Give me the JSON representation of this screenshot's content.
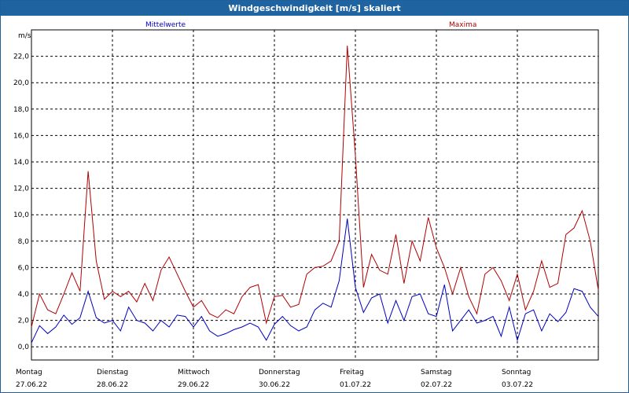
{
  "chart_data": {
    "type": "line",
    "title": "Windgeschwindigkeit [m/s] skaliert",
    "ylabel": "m/s",
    "ylim": [
      -1,
      24
    ],
    "yticks": [
      "0,0",
      "2,0",
      "4,0",
      "6,0",
      "8,0",
      "10,0",
      "12,0",
      "14,0",
      "16,0",
      "18,0",
      "20,0",
      "22,0"
    ],
    "days": [
      {
        "name": "Montag",
        "date": "27.06.22"
      },
      {
        "name": "Dienstag",
        "date": "28.06.22"
      },
      {
        "name": "Mittwoch",
        "date": "29.06.22"
      },
      {
        "name": "Donnerstag",
        "date": "30.06.22"
      },
      {
        "name": "Freitag",
        "date": "01.07.22"
      },
      {
        "name": "Samstag",
        "date": "02.07.22"
      },
      {
        "name": "Sonntag",
        "date": "03.07.22"
      }
    ],
    "xlim": [
      0,
      7
    ],
    "series": [
      {
        "name": "Mittelwerte",
        "color": "#0000c0",
        "x": [
          0,
          0.1,
          0.2,
          0.3,
          0.4,
          0.5,
          0.6,
          0.7,
          0.8,
          0.9,
          1.0,
          1.1,
          1.2,
          1.3,
          1.4,
          1.5,
          1.6,
          1.7,
          1.8,
          1.9,
          2.0,
          2.1,
          2.2,
          2.3,
          2.4,
          2.5,
          2.6,
          2.7,
          2.8,
          2.9,
          3.0,
          3.1,
          3.2,
          3.3,
          3.4,
          3.5,
          3.6,
          3.7,
          3.8,
          3.9,
          4.0,
          4.1,
          4.2,
          4.3,
          4.4,
          4.5,
          4.6,
          4.7,
          4.8,
          4.9,
          5.0,
          5.1,
          5.2,
          5.3,
          5.4,
          5.5,
          5.6,
          5.7,
          5.8,
          5.9,
          6.0,
          6.1,
          6.2,
          6.3,
          6.4,
          6.5,
          6.6,
          6.7,
          6.8,
          6.9,
          7.0
        ],
        "values": [
          0.3,
          1.6,
          1.0,
          1.5,
          2.4,
          1.7,
          2.2,
          4.2,
          2.2,
          1.8,
          2.0,
          1.2,
          3.0,
          2.0,
          1.8,
          1.2,
          2.0,
          1.5,
          2.4,
          2.3,
          1.5,
          2.3,
          1.2,
          0.8,
          1.0,
          1.3,
          1.5,
          1.8,
          1.5,
          0.5,
          1.7,
          2.3,
          1.6,
          1.2,
          1.5,
          2.8,
          3.3,
          3.0,
          5.0,
          9.7,
          4.5,
          2.6,
          3.7,
          4.0,
          1.8,
          3.5,
          2.0,
          3.8,
          4.0,
          2.5,
          2.3,
          4.7,
          1.2,
          2.0,
          2.8,
          1.8,
          2.0,
          2.3,
          0.8,
          3.0,
          0.5,
          2.5,
          2.8,
          1.2,
          2.5,
          1.9,
          2.6,
          4.4,
          4.2,
          3.0,
          2.3
        ]
      },
      {
        "name": "Maxima",
        "color": "#b00000",
        "x": [
          0,
          0.1,
          0.2,
          0.3,
          0.4,
          0.5,
          0.6,
          0.7,
          0.8,
          0.9,
          1.0,
          1.1,
          1.2,
          1.3,
          1.4,
          1.5,
          1.6,
          1.7,
          1.8,
          1.9,
          2.0,
          2.1,
          2.2,
          2.3,
          2.4,
          2.5,
          2.6,
          2.7,
          2.8,
          2.9,
          3.0,
          3.1,
          3.2,
          3.3,
          3.4,
          3.5,
          3.6,
          3.7,
          3.8,
          3.9,
          4.0,
          4.1,
          4.2,
          4.3,
          4.4,
          4.5,
          4.6,
          4.7,
          4.8,
          4.9,
          5.0,
          5.1,
          5.2,
          5.3,
          5.4,
          5.5,
          5.6,
          5.7,
          5.8,
          5.9,
          6.0,
          6.1,
          6.2,
          6.3,
          6.4,
          6.5,
          6.6,
          6.7,
          6.8,
          6.9,
          7.0
        ],
        "values": [
          1.5,
          4.0,
          2.8,
          2.5,
          4.0,
          5.6,
          4.2,
          13.3,
          6.5,
          3.6,
          4.2,
          3.8,
          4.2,
          3.4,
          4.8,
          3.5,
          5.8,
          6.8,
          5.5,
          4.2,
          3.0,
          3.5,
          2.5,
          2.2,
          2.8,
          2.5,
          3.8,
          4.5,
          4.7,
          1.8,
          3.8,
          3.9,
          3.0,
          3.2,
          5.5,
          6.0,
          6.1,
          6.5,
          8.0,
          22.8,
          14.5,
          4.5,
          7.0,
          5.8,
          5.5,
          8.5,
          4.8,
          8.0,
          6.5,
          9.8,
          7.5,
          6.0,
          4.0,
          6.0,
          3.8,
          2.5,
          5.5,
          6.0,
          5.0,
          3.5,
          5.5,
          2.8,
          4.2,
          6.5,
          4.5,
          4.8,
          8.5,
          9.0,
          10.3,
          8.0,
          4.3
        ]
      }
    ]
  }
}
